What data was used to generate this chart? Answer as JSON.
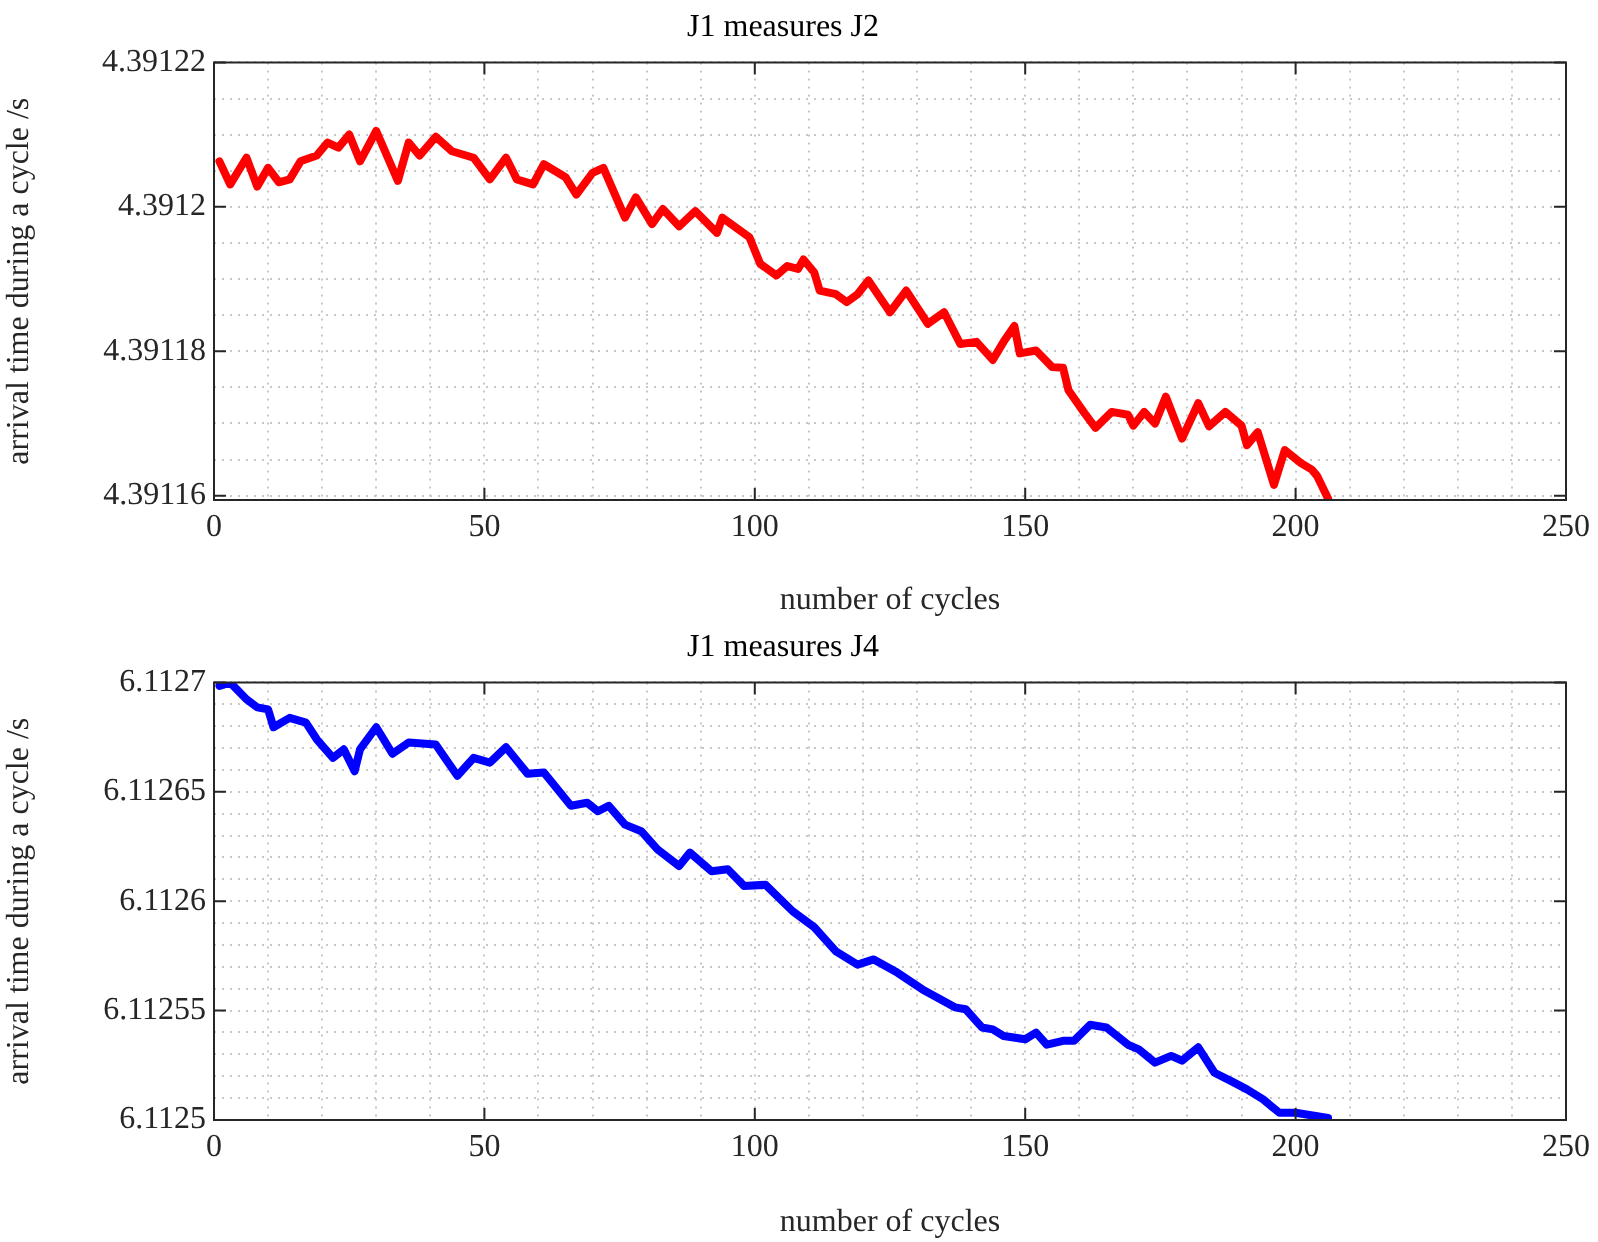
{
  "chart_data": [
    {
      "type": "line",
      "title": "J1 measures J2",
      "xlabel": "number of cycles",
      "ylabel": "arrival time during a cycle /s",
      "xlim": [
        0,
        250
      ],
      "ylim": [
        4.3911594,
        4.39122
      ],
      "xticks": [
        0,
        {
          "value": 10,
          "label": null
        },
        {
          "value": 20,
          "label": null
        },
        {
          "value": 30,
          "label": null
        },
        {
          "value": 40,
          "label": null
        },
        50,
        {
          "value": 60,
          "label": null
        },
        {
          "value": 70,
          "label": null
        },
        {
          "value": 80,
          "label": null
        },
        {
          "value": 90,
          "label": null
        },
        100,
        {
          "value": 110,
          "label": null
        },
        {
          "value": 120,
          "label": null
        },
        {
          "value": 130,
          "label": null
        },
        {
          "value": 140,
          "label": null
        },
        150,
        {
          "value": 160,
          "label": null
        },
        {
          "value": 170,
          "label": null
        },
        {
          "value": 180,
          "label": null
        },
        {
          "value": 190,
          "label": null
        },
        200,
        {
          "value": 210,
          "label": null
        },
        {
          "value": 220,
          "label": null
        },
        {
          "value": 230,
          "label": null
        },
        {
          "value": 240,
          "label": null
        },
        250
      ],
      "yticks": [
        4.39116,
        {
          "value": 4.391165,
          "label": null
        },
        {
          "value": 4.39117,
          "label": null
        },
        {
          "value": 4.391175,
          "label": null
        },
        4.39118,
        {
          "value": 4.391185,
          "label": null
        },
        {
          "value": 4.39119,
          "label": null
        },
        {
          "value": 4.391195,
          "label": null
        },
        4.3912,
        {
          "value": 4.391205,
          "label": null
        },
        {
          "value": 4.39121,
          "label": null
        },
        {
          "value": 4.391215,
          "label": null
        },
        4.39122
      ],
      "grid": true,
      "series": [
        {
          "color": "#ff0000",
          "x": [
            1,
            3,
            6,
            8,
            10,
            12,
            14,
            16,
            19,
            21,
            23,
            25,
            27,
            30,
            34,
            36,
            38,
            41,
            44,
            48,
            51,
            54,
            56,
            59,
            61,
            65,
            67,
            70,
            72,
            76,
            78,
            81,
            83,
            86,
            89,
            93,
            94,
            99,
            101,
            104,
            106,
            108,
            109,
            111,
            112,
            115,
            117,
            119,
            121,
            125,
            128,
            132,
            135,
            138,
            141,
            144,
            146,
            148,
            149,
            152,
            155,
            157,
            158,
            161,
            163,
            166,
            169,
            170,
            172,
            174,
            176,
            179,
            182,
            184,
            187,
            190,
            191,
            193,
            196,
            198,
            201,
            203,
            204,
            206
          ],
          "values": [
            4.3912063,
            4.3912031,
            4.3912068,
            4.3912028,
            4.3912054,
            4.3912034,
            4.3912038,
            4.3912063,
            4.3912071,
            4.3912089,
            4.3912082,
            4.39121,
            4.3912063,
            4.3912105,
            4.3912036,
            4.3912089,
            4.3912071,
            4.3912097,
            4.3912077,
            4.3912068,
            4.3912038,
            4.3912068,
            4.3912038,
            4.3912031,
            4.3912059,
            4.3912041,
            4.3912017,
            4.3912047,
            4.3912054,
            4.3911985,
            4.3912013,
            4.3911976,
            4.3911997,
            4.3911973,
            4.3911994,
            4.3911964,
            4.3911985,
            4.3911958,
            4.3911921,
            4.3911905,
            4.3911918,
            4.3911914,
            4.3911927,
            4.3911909,
            4.3911884,
            4.3911879,
            4.3911868,
            4.3911879,
            4.3911898,
            4.3911854,
            4.3911884,
            4.3911838,
            4.3911854,
            4.391181,
            4.3911813,
            4.3911788,
            4.3911813,
            4.3911835,
            4.3911797,
            4.3911801,
            4.3911778,
            4.3911777,
            4.3911746,
            4.3911714,
            4.3911694,
            4.3911716,
            4.3911712,
            4.3911697,
            4.3911716,
            4.39117,
            4.3911737,
            4.3911679,
            4.3911728,
            4.3911696,
            4.3911716,
            4.3911697,
            4.391167,
            4.3911688,
            4.3911615,
            4.3911663,
            4.3911645,
            4.3911636,
            4.3911627,
            4.3911596
          ]
        }
      ]
    },
    {
      "type": "line",
      "title": "J1 measures J4",
      "xlabel": "number of cycles",
      "ylabel": "arrival time during a cycle /s",
      "xlim": [
        0,
        250
      ],
      "ylim": [
        6.1125,
        6.1127
      ],
      "xticks": [
        0,
        {
          "value": 10,
          "label": null
        },
        {
          "value": 20,
          "label": null
        },
        {
          "value": 30,
          "label": null
        },
        {
          "value": 40,
          "label": null
        },
        50,
        {
          "value": 60,
          "label": null
        },
        {
          "value": 70,
          "label": null
        },
        {
          "value": 80,
          "label": null
        },
        {
          "value": 90,
          "label": null
        },
        100,
        {
          "value": 110,
          "label": null
        },
        {
          "value": 120,
          "label": null
        },
        {
          "value": 130,
          "label": null
        },
        {
          "value": 140,
          "label": null
        },
        150,
        {
          "value": 160,
          "label": null
        },
        {
          "value": 170,
          "label": null
        },
        {
          "value": 180,
          "label": null
        },
        {
          "value": 190,
          "label": null
        },
        200,
        {
          "value": 210,
          "label": null
        },
        {
          "value": 220,
          "label": null
        },
        {
          "value": 230,
          "label": null
        },
        {
          "value": 240,
          "label": null
        },
        250
      ],
      "yticks": [
        6.1125,
        {
          "value": 6.11251,
          "label": null
        },
        {
          "value": 6.11252,
          "label": null
        },
        {
          "value": 6.11253,
          "label": null
        },
        {
          "value": 6.11254,
          "label": null
        },
        6.11255,
        {
          "value": 6.11256,
          "label": null
        },
        {
          "value": 6.11257,
          "label": null
        },
        {
          "value": 6.11258,
          "label": null
        },
        {
          "value": 6.11259,
          "label": null
        },
        6.1126,
        {
          "value": 6.11261,
          "label": null
        },
        {
          "value": 6.11262,
          "label": null
        },
        {
          "value": 6.11263,
          "label": null
        },
        {
          "value": 6.11264,
          "label": null
        },
        6.11265,
        {
          "value": 6.11266,
          "label": null
        },
        {
          "value": 6.11267,
          "label": null
        },
        {
          "value": 6.11268,
          "label": null
        },
        {
          "value": 6.11269,
          "label": null
        },
        6.1127
      ],
      "grid": true,
      "series": [
        {
          "color": "#0000ff",
          "x": [
            1,
            3,
            6,
            8,
            10,
            11,
            14,
            17,
            19,
            22,
            24,
            26,
            27,
            30,
            33,
            36,
            41,
            45,
            48,
            51,
            54,
            58,
            61,
            66,
            69,
            71,
            73,
            76,
            79,
            82,
            86,
            88,
            92,
            95,
            98,
            102,
            107,
            111,
            115,
            119,
            122,
            126,
            131,
            137,
            139,
            142,
            144,
            146,
            150,
            152,
            154,
            157,
            159,
            162,
            165,
            169,
            171,
            174,
            177,
            179,
            182,
            185,
            188,
            191,
            194,
            197,
            200,
            206
          ],
          "values": [
            6.1126984,
            6.1126999,
            6.1126923,
            6.1126886,
            6.1126877,
            6.1126795,
            6.1126838,
            6.1126816,
            6.112674,
            6.1126655,
            6.1126694,
            6.1126594,
            6.1126694,
            6.1126795,
            6.1126674,
            6.1126725,
            6.1126716,
            6.1126573,
            6.1126655,
            6.1126633,
            6.1126704,
            6.1126582,
            6.1126588,
            6.1126436,
            6.112645,
            6.1126411,
            6.1126436,
            6.112635,
            6.112632,
            6.1126237,
            6.1126161,
            6.1126222,
            6.1126137,
            6.1126146,
            6.112607,
            6.1126075,
            6.1125954,
            6.1125881,
            6.1125771,
            6.112571,
            6.1125734,
            6.1125679,
            6.1125597,
            6.1125515,
            6.1125506,
            6.1125423,
            6.1125414,
            6.1125384,
            6.1125369,
            6.1125399,
            6.1125344,
            6.1125362,
            6.1125362,
            6.1125435,
            6.1125423,
            6.1125344,
            6.1125323,
            6.1125262,
            6.1125293,
            6.1125271,
            6.1125332,
            6.1125216,
            6.1125179,
            6.112514,
            6.1125094,
            6.1125033,
            6.1125033,
            6.1125009
          ]
        }
      ]
    }
  ]
}
